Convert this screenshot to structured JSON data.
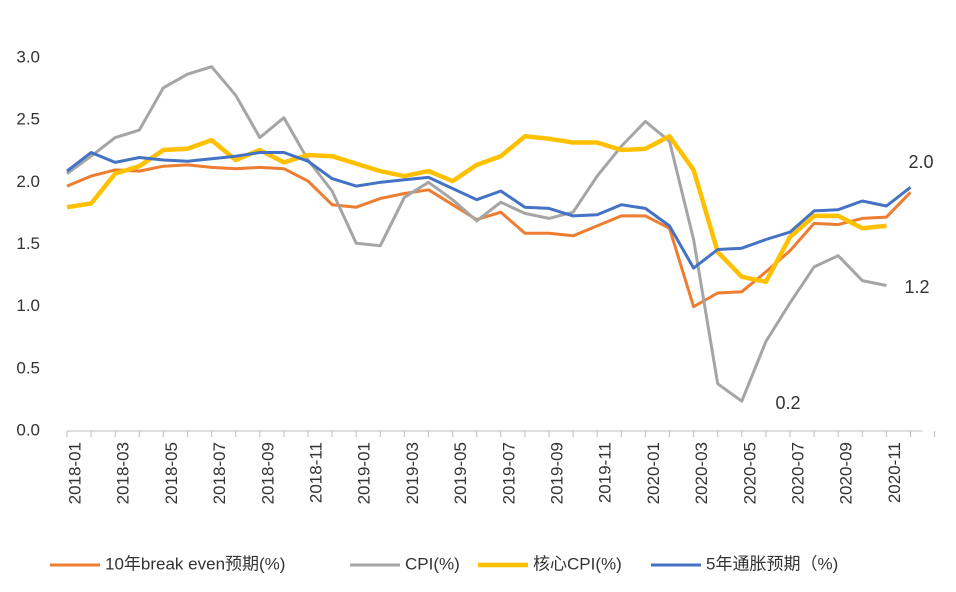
{
  "chart_data": {
    "type": "line",
    "categories": [
      "2018-01",
      null,
      "2018-03",
      null,
      "2018-05",
      null,
      "2018-07",
      null,
      "2018-09",
      null,
      "2018-11",
      null,
      "2019-01",
      null,
      "2019-03",
      null,
      "2019-05",
      null,
      "2019-07",
      null,
      "2019-09",
      null,
      "2019-11",
      null,
      "2020-01",
      null,
      "2020-03",
      null,
      "2020-05",
      null,
      "2020-07",
      null,
      "2020-09",
      null,
      "2020-11",
      null
    ],
    "series": [
      {
        "name": "10年break even预期(%)",
        "color": "#ed7d31",
        "values": [
          1.97,
          2.05,
          2.1,
          2.09,
          2.13,
          2.14,
          2.12,
          2.11,
          2.12,
          2.11,
          2.01,
          1.82,
          1.8,
          1.87,
          1.91,
          1.94,
          1.82,
          1.7,
          1.76,
          1.59,
          1.59,
          1.57,
          1.65,
          1.73,
          1.73,
          1.63,
          1.0,
          1.11,
          1.12,
          1.28,
          1.45,
          1.67,
          1.66,
          1.71,
          1.72,
          1.92
        ]
      },
      {
        "name": "CPI(%)",
        "color": "#a5a5a5",
        "values": [
          2.07,
          2.21,
          2.36,
          2.42,
          2.76,
          2.87,
          2.93,
          2.7,
          2.36,
          2.52,
          2.18,
          1.93,
          1.51,
          1.49,
          1.88,
          2.0,
          1.86,
          1.69,
          1.84,
          1.75,
          1.71,
          1.76,
          2.05,
          2.29,
          2.49,
          2.33,
          1.54,
          0.38,
          0.24,
          0.72,
          1.03,
          1.32,
          1.41,
          1.21,
          1.17,
          null
        ]
      },
      {
        "name": "核心CPI(%)",
        "color": "#ffc000",
        "values": [
          1.8,
          1.83,
          2.07,
          2.13,
          2.26,
          2.27,
          2.34,
          2.18,
          2.26,
          2.16,
          2.22,
          2.21,
          2.15,
          2.09,
          2.05,
          2.09,
          2.01,
          2.14,
          2.21,
          2.37,
          2.35,
          2.32,
          2.32,
          2.26,
          2.27,
          2.37,
          2.1,
          1.44,
          1.24,
          1.2,
          1.56,
          1.73,
          1.73,
          1.63,
          1.65,
          null
        ]
      },
      {
        "name": "5年通胀预期（%)",
        "color": "#4472c4",
        "values": [
          2.09,
          2.24,
          2.16,
          2.2,
          2.18,
          2.17,
          2.19,
          2.21,
          2.24,
          2.24,
          2.17,
          2.03,
          1.97,
          2.0,
          2.02,
          2.04,
          1.95,
          1.86,
          1.93,
          1.8,
          1.79,
          1.73,
          1.74,
          1.82,
          1.79,
          1.65,
          1.31,
          1.46,
          1.47,
          1.54,
          1.6,
          1.77,
          1.78,
          1.85,
          1.81,
          1.96
        ]
      }
    ],
    "ylim": [
      0,
      3
    ],
    "yticks": [
      {
        "value": 0,
        "label": "0.0"
      },
      {
        "value": 0.5,
        "label": "0.5"
      },
      {
        "value": 1,
        "label": "1.0"
      },
      {
        "value": 1.5,
        "label": "1.5"
      },
      {
        "value": 2,
        "label": "2.0"
      },
      {
        "value": 2.5,
        "label": "2.5"
      },
      {
        "value": 3,
        "label": "3.0"
      }
    ],
    "annotations": [
      "2.0",
      "1.2",
      "0.2"
    ],
    "grid": false
  }
}
